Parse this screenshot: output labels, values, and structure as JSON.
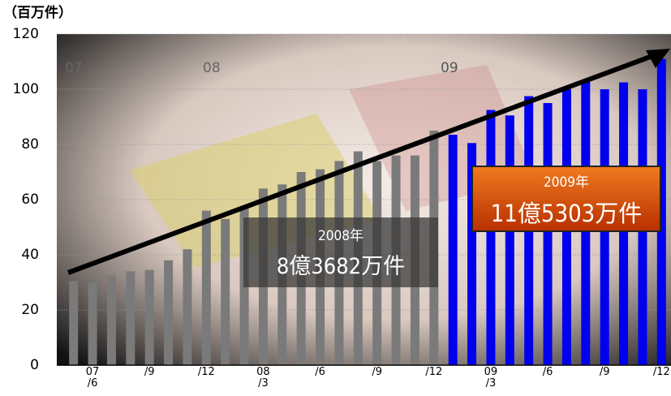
{
  "chart_data": {
    "type": "bar",
    "y_unit_label": "（百万件）",
    "period_labels": [
      "07",
      "08",
      "09"
    ],
    "categories": [
      null,
      "07\n/6",
      null,
      null,
      "/9",
      null,
      null,
      "/12",
      null,
      null,
      "08\n/3",
      null,
      null,
      "/6",
      null,
      null,
      "/9",
      null,
      null,
      "/12",
      null,
      null,
      "09\n/3",
      null,
      null,
      "/6",
      null,
      null,
      "/9",
      null,
      null,
      "/12"
    ],
    "series": [
      {
        "name": "2008",
        "color": "#7a7a7a",
        "values": [
          30.5,
          30,
          32.5,
          34,
          34.5,
          38,
          42,
          56,
          53,
          57,
          64,
          65.5,
          70,
          71,
          74,
          77.5,
          74,
          76,
          76,
          85,
          null,
          null,
          null,
          null,
          null,
          null,
          null,
          null,
          null,
          null,
          null,
          null
        ]
      },
      {
        "name": "2009",
        "color": "#0000ee",
        "values": [
          null,
          null,
          null,
          null,
          null,
          null,
          null,
          null,
          null,
          null,
          null,
          null,
          null,
          null,
          null,
          null,
          null,
          null,
          null,
          null,
          83.5,
          80.5,
          92.5,
          90.5,
          97.5,
          95,
          100,
          103,
          100,
          102.5,
          100,
          111
        ]
      }
    ],
    "annotations": [
      {
        "year": "2008年",
        "total": "8億3682万件"
      },
      {
        "year": "2009年",
        "total": "11億5303万件"
      }
    ],
    "ylim": [
      0,
      120
    ],
    "yticks": [
      0,
      20,
      40,
      60,
      80,
      100,
      120
    ],
    "grid": true
  }
}
